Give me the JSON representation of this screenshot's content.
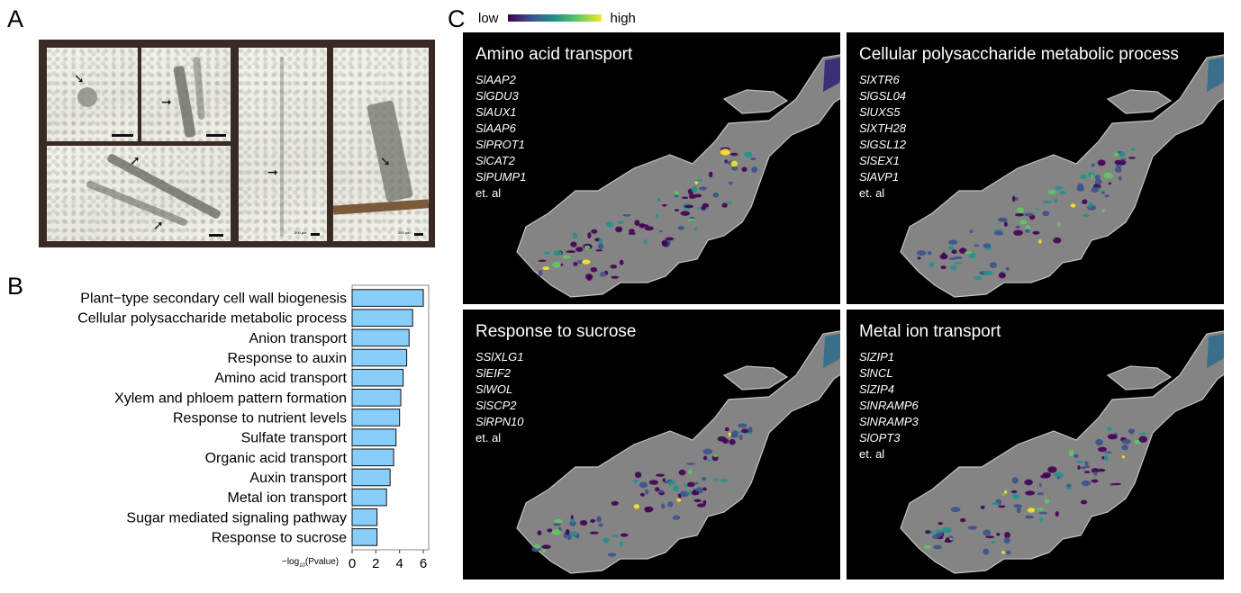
{
  "panel_letters": {
    "a": "A",
    "b": "B",
    "c": "C"
  },
  "panelA": {
    "scale_labels": [
      "200 μm",
      "200 μm"
    ]
  },
  "chart_data": {
    "type": "bar",
    "orientation": "horizontal",
    "categories": [
      "Plant−type secondary cell wall biogenesis",
      "Cellular polysaccharide metabolic process",
      "Anion transport",
      "Response to auxin",
      "Amino acid transport",
      "Xylem and phloem pattern formation",
      "Response to nutrient levels",
      "Sulfate transport",
      "Organic acid transport",
      "Auxin transport",
      "Metal ion transport",
      "Sugar mediated signaling pathway",
      "Response to sucrose"
    ],
    "values": [
      6.0,
      5.1,
      4.8,
      4.6,
      4.3,
      4.1,
      4.0,
      3.7,
      3.5,
      3.2,
      2.9,
      2.1,
      2.1
    ],
    "xlabel_prefix": "−log",
    "xlabel_sub": "10",
    "xlabel_suffix": "(Pvalue)",
    "xticks": [
      "0",
      "2",
      "4",
      "6"
    ],
    "xlim": [
      0,
      6.3
    ],
    "bar_color": "#87CEFA",
    "grid": false
  },
  "panelC": {
    "legend": {
      "low": "low",
      "high": "high"
    },
    "tiles": [
      {
        "title": "Amino acid transport",
        "genes": [
          "SlAAP2",
          "SlGDU3",
          "SlAUX1",
          "SlAAP6",
          "SlPROT1",
          "SlCAT2",
          "SlPUMP1"
        ],
        "etal": "et. al"
      },
      {
        "title": "Cellular polysaccharide metabolic process",
        "genes": [
          "SlXTR6",
          "SlGSL04",
          "SlUXS5",
          "SlXTH28",
          "SlGSL12",
          "SlSEX1",
          "SlAVP1"
        ],
        "etal": "et. al"
      },
      {
        "title": "Response to sucrose",
        "genes": [
          "SSlXLG1",
          "SlEIF2",
          "SlWOL",
          "SlSCP2",
          "SlRPN10"
        ],
        "etal": "et. al"
      },
      {
        "title": "Metal ion transport",
        "genes": [
          "SlZIP1",
          "SlNCL",
          "SlZIP4",
          "SlNRAMP6",
          "SlNRAMP3",
          "SlOPT3"
        ],
        "etal": "et. al"
      }
    ],
    "colormap": [
      "#440154",
      "#3b528b",
      "#21918c",
      "#5ec962",
      "#fde725"
    ]
  }
}
